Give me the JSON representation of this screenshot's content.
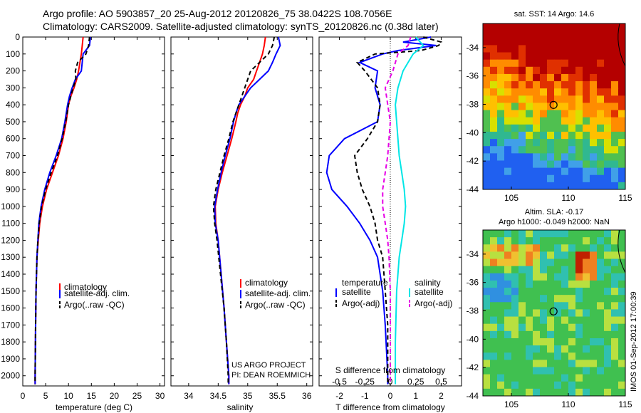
{
  "header": {
    "line1": "Argo profile: AO 5903857_20 25-Aug-2012 20120826_75 38.0422S 108.7056E",
    "line2": "Climatology: CARS2009. Satellite-adjusted climatology: synTS_20120826.nc (0.38d later)"
  },
  "side_label": "IMOS 01-Sep-2012 17:00:39",
  "colors": {
    "climatology": "#ff0000",
    "satellite": "#0000ff",
    "argo": "#000000",
    "cyan": "#00e6e6",
    "magenta": "#e600e6"
  },
  "chart_data": [
    {
      "type": "line",
      "xlabel": "temperature (deg C)",
      "xlim": [
        0,
        31
      ],
      "xticks": [
        "0",
        "5",
        "10",
        "15",
        "20",
        "25",
        "30"
      ],
      "ylim": [
        2060,
        0
      ],
      "yticks": [
        "0",
        "100",
        "200",
        "300",
        "400",
        "500",
        "600",
        "700",
        "800",
        "900",
        "1000",
        "1100",
        "1200",
        "1300",
        "1400",
        "1500",
        "1600",
        "1700",
        "1800",
        "1900",
        "2000"
      ],
      "legend": [
        "climatology",
        "satellite-adj. clim.",
        "Argo(..raw -QC)"
      ],
      "series": [
        {
          "key": "climatology",
          "color": "#ff0000",
          "dash": "",
          "y": [
            0,
            50,
            100,
            200,
            250,
            300,
            350,
            400,
            500,
            600,
            700,
            800,
            900,
            1000,
            1100,
            1200,
            1300,
            1500,
            1700,
            2000,
            2050
          ],
          "x": [
            13.2,
            13.0,
            12.8,
            12.2,
            11.8,
            11.2,
            10.5,
            10.0,
            9.5,
            8.8,
            7.8,
            6.5,
            5.2,
            4.3,
            3.7,
            3.4,
            3.1,
            2.9,
            2.8,
            2.7,
            2.7
          ]
        },
        {
          "key": "satellite",
          "color": "#0000ff",
          "dash": "",
          "y": [
            0,
            50,
            100,
            200,
            250,
            300,
            350,
            400,
            500,
            600,
            700,
            800,
            900,
            1000,
            1100,
            1200,
            1300,
            1500,
            1700,
            2000,
            2050
          ],
          "x": [
            14.8,
            14.6,
            13.2,
            12.8,
            11.5,
            10.8,
            10.2,
            9.8,
            9.2,
            8.5,
            7.3,
            5.9,
            4.8,
            4.0,
            3.5,
            3.3,
            3.1,
            2.9,
            2.8,
            2.7,
            2.7
          ]
        },
        {
          "key": "argo",
          "color": "#000000",
          "dash": "6,4",
          "y": [
            0,
            50,
            100,
            150,
            200,
            250,
            300,
            350,
            400,
            500,
            600,
            700,
            800,
            900,
            1000,
            1100,
            1200,
            1300,
            1500,
            1700,
            2000,
            2050
          ],
          "x": [
            14.6,
            14.4,
            13.8,
            12.0,
            11.5,
            11.6,
            11.0,
            10.5,
            10.0,
            9.4,
            8.6,
            7.6,
            6.2,
            5.0,
            4.1,
            3.6,
            3.3,
            3.1,
            2.9,
            2.8,
            2.7,
            2.7
          ]
        }
      ]
    },
    {
      "type": "line",
      "xlabel": "salinity",
      "xlim": [
        33.7,
        36.1
      ],
      "xticks": [
        "34",
        "34.5",
        "35",
        "35.5",
        "36"
      ],
      "ylim": [
        2060,
        0
      ],
      "legend": [
        "climatology",
        "satellite-adj. clim.",
        "Argo(..raw -QC)"
      ],
      "annotation": [
        "US ARGO PROJECT",
        "PI: DEAN ROEMMICH"
      ],
      "series": [
        {
          "key": "climatology",
          "color": "#ff0000",
          "dash": "",
          "y": [
            0,
            50,
            100,
            150,
            200,
            250,
            300,
            350,
            400,
            450,
            500,
            600,
            700,
            800,
            900,
            1000,
            1100,
            1200,
            1400,
            1600,
            1800,
            2000,
            2050
          ],
          "x": [
            35.3,
            35.28,
            35.25,
            35.2,
            35.15,
            35.1,
            35.0,
            34.95,
            34.88,
            34.83,
            34.8,
            34.73,
            34.65,
            34.57,
            34.5,
            34.45,
            34.46,
            34.5,
            34.55,
            34.6,
            34.64,
            34.68,
            34.68
          ]
        },
        {
          "key": "satellite",
          "color": "#0000ff",
          "dash": "",
          "y": [
            0,
            50,
            100,
            150,
            200,
            250,
            300,
            350,
            400,
            450,
            500,
            600,
            700,
            800,
            900,
            1000,
            1100,
            1200,
            1400,
            1600,
            1800,
            2000,
            2050
          ],
          "x": [
            35.52,
            35.55,
            35.48,
            35.42,
            35.35,
            35.2,
            35.05,
            34.95,
            34.85,
            34.8,
            34.76,
            34.7,
            34.62,
            34.55,
            34.49,
            34.44,
            34.45,
            34.5,
            34.55,
            34.6,
            34.64,
            34.68,
            34.68
          ]
        },
        {
          "key": "argo",
          "color": "#000000",
          "dash": "6,4",
          "y": [
            0,
            50,
            100,
            150,
            200,
            250,
            300,
            350,
            400,
            450,
            500,
            600,
            700,
            800,
            900,
            1000,
            1100,
            1200,
            1400,
            1600,
            1800,
            2000,
            2050
          ],
          "x": [
            35.45,
            35.42,
            35.35,
            35.2,
            35.05,
            35.0,
            34.95,
            34.9,
            34.85,
            34.8,
            34.75,
            34.68,
            34.6,
            34.53,
            34.46,
            34.42,
            34.44,
            34.48,
            34.54,
            34.6,
            34.64,
            34.67,
            34.67
          ]
        }
      ]
    },
    {
      "type": "line",
      "xlabel": "T difference from climatology",
      "xlabel2": "S difference from climatology",
      "xlim": [
        -2.8,
        2.8
      ],
      "xticks": [
        "-2",
        "-1",
        "0",
        "1",
        "2"
      ],
      "xticks2": [
        {
          "label": "-0.5",
          "t": -2.0
        },
        {
          "label": "-0.25",
          "t": -1.0
        },
        {
          "label": "0",
          "t": 0.0
        },
        {
          "label": "0.25",
          "t": 1.0
        },
        {
          "label": "0.5",
          "t": 2.0
        }
      ],
      "ylim": [
        2060,
        0
      ],
      "legend_left": {
        "title": "temperature",
        "items": [
          "satellite",
          "Argo(-adj)"
        ]
      },
      "legend_right": {
        "title": "salinity",
        "items": [
          "satellite",
          "Argo(-adj)"
        ]
      },
      "series": [
        {
          "key": "t-satellite",
          "color": "#0000ff",
          "dash": "",
          "y": [
            0,
            30,
            50,
            80,
            100,
            150,
            200,
            300,
            400,
            500,
            600,
            700,
            800,
            900,
            1000,
            1100,
            1200,
            1300,
            1500,
            1700,
            2000,
            2050
          ],
          "x": [
            1.6,
            0.5,
            1.8,
            0.3,
            -0.3,
            -1.2,
            -0.5,
            -0.6,
            -0.4,
            -0.5,
            -1.8,
            -2.4,
            -2.5,
            -2.3,
            -1.7,
            -1.2,
            -0.8,
            -0.5,
            -0.3,
            -0.2,
            -0.1,
            -0.1
          ]
        },
        {
          "key": "t-argo",
          "color": "#000000",
          "dash": "6,4",
          "y": [
            0,
            30,
            50,
            80,
            100,
            150,
            200,
            300,
            400,
            500,
            600,
            700,
            800,
            900,
            1000,
            1100,
            1200,
            1300,
            1500,
            1700,
            2000,
            2050
          ],
          "x": [
            1.3,
            2.0,
            1.9,
            1.2,
            -0.6,
            -1.3,
            -1.0,
            -0.5,
            -0.4,
            -0.5,
            -0.9,
            -1.4,
            -1.3,
            -1.1,
            -0.8,
            -0.6,
            -0.5,
            -0.3,
            -0.2,
            -0.1,
            -0.1,
            -0.1
          ]
        },
        {
          "key": "s-satellite",
          "color": "#00e6e6",
          "dash": "",
          "y": [
            0,
            50,
            100,
            200,
            300,
            400,
            500,
            600,
            700,
            800,
            900,
            1000,
            1100,
            1200,
            1300,
            1500,
            1800,
            2000,
            2050
          ],
          "x": [
            1.0,
            1.3,
            0.9,
            0.5,
            0.3,
            0.2,
            0.25,
            0.3,
            0.35,
            0.45,
            0.55,
            0.6,
            0.55,
            0.45,
            0.35,
            0.25,
            0.2,
            0.2,
            0.2
          ]
        },
        {
          "key": "s-argo",
          "color": "#e600e6",
          "dash": "6,4",
          "y": [
            0,
            50,
            100,
            200,
            300,
            400,
            500,
            600,
            700,
            800,
            900,
            1000,
            1100,
            1200,
            1300,
            1500,
            1800,
            2000,
            2050
          ],
          "x": [
            0.8,
            0.7,
            0.3,
            0.1,
            -0.2,
            -0.1,
            0.0,
            -0.05,
            -0.1,
            -0.2,
            -0.3,
            -0.3,
            -0.2,
            -0.1,
            -0.05,
            0.0,
            0.0,
            0.0,
            0.0
          ]
        }
      ]
    },
    {
      "type": "heatmap",
      "title": "sat. SST: 14 Argo: 14.6",
      "xticks": [
        "105",
        "110",
        "115"
      ],
      "yticks": [
        "-34",
        "-36",
        "-38",
        "-40",
        "-42",
        "-44"
      ],
      "xlim": [
        102.5,
        115
      ],
      "ylim": [
        -44,
        -32.3
      ],
      "marker": {
        "x": 108.7,
        "y": -38.04
      }
    },
    {
      "type": "heatmap",
      "title": "Altim. SLA: -0.17",
      "subtitle": "Argo h1000: -0.049 h2000: NaN",
      "xticks": [
        "105",
        "110",
        "115"
      ],
      "yticks": [
        "-34",
        "-36",
        "-38",
        "-40",
        "-42",
        "-44"
      ],
      "xlim": [
        102.5,
        115
      ],
      "ylim": [
        -44,
        -32.3
      ],
      "marker": {
        "x": 108.7,
        "y": -38.04
      }
    }
  ]
}
